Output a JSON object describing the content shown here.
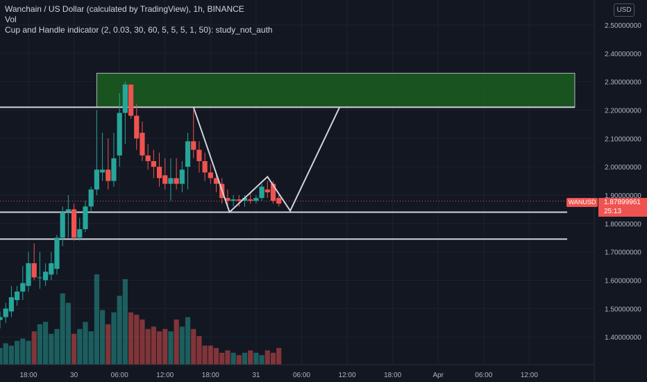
{
  "legend": {
    "title": "Wanchain / US Dollar (calculated by TradingView), 1h, BINANCE",
    "vol": "Vol",
    "indicator": "Cup and Handle indicator (2, 0.03, 30, 60, 5, 5, 5, 1, 50): study_not_auth"
  },
  "currency_button": "USD",
  "last_price": {
    "symbol": "WANUSD",
    "value": "1.87899961",
    "countdown": "25:13"
  },
  "colors": {
    "background": "#131722",
    "up": "#26a69a",
    "down": "#ef5350",
    "zone_fill": "#1b5e20",
    "line": "#d1d4dc",
    "grid": "#1e222d"
  },
  "chart_data": {
    "type": "candlestick",
    "symbol": "WANUSD",
    "interval": "1h",
    "ylim": [
      1.32,
      2.56
    ],
    "y_ticks": [
      "2.50000000",
      "2.40000000",
      "2.30000000",
      "2.20000000",
      "2.10000000",
      "2.00000000",
      "1.90000000",
      "1.80000000",
      "1.70000000",
      "1.60000000",
      "1.50000000",
      "1.40000000"
    ],
    "x_ticks": [
      "18:00",
      "30",
      "06:00",
      "12:00",
      "18:00",
      "31",
      "06:00",
      "12:00",
      "18:00",
      "Apr",
      "06:00",
      "12:00"
    ],
    "x_tick_hours": [
      0,
      6,
      12,
      18,
      24,
      30,
      36,
      42,
      48,
      54,
      60,
      66
    ],
    "candles": [
      {
        "t": -4.5,
        "o": 1.45,
        "h": 1.47,
        "l": 1.42,
        "c": 1.43
      },
      {
        "t": -3.75,
        "o": 1.46,
        "h": 1.49,
        "l": 1.43,
        "c": 1.47
      },
      {
        "t": -3,
        "o": 1.47,
        "h": 1.52,
        "l": 1.45,
        "c": 1.5
      },
      {
        "t": -2.25,
        "o": 1.49,
        "h": 1.58,
        "l": 1.47,
        "c": 1.54
      },
      {
        "t": -1.5,
        "o": 1.53,
        "h": 1.58,
        "l": 1.51,
        "c": 1.56
      },
      {
        "t": -0.75,
        "o": 1.56,
        "h": 1.65,
        "l": 1.53,
        "c": 1.59
      },
      {
        "t": 0,
        "o": 1.58,
        "h": 1.7,
        "l": 1.56,
        "c": 1.66
      },
      {
        "t": 0.75,
        "o": 1.66,
        "h": 1.73,
        "l": 1.6,
        "c": 1.61
      },
      {
        "t": 1.5,
        "o": 1.61,
        "h": 1.7,
        "l": 1.57,
        "c": 1.61
      },
      {
        "t": 2.25,
        "o": 1.6,
        "h": 1.66,
        "l": 1.58,
        "c": 1.63
      },
      {
        "t": 3,
        "o": 1.62,
        "h": 1.7,
        "l": 1.6,
        "c": 1.66
      },
      {
        "t": 3.75,
        "o": 1.64,
        "h": 1.76,
        "l": 1.62,
        "c": 1.75
      },
      {
        "t": 4.5,
        "o": 1.75,
        "h": 1.86,
        "l": 1.72,
        "c": 1.84
      },
      {
        "t": 5.25,
        "o": 1.84,
        "h": 1.9,
        "l": 1.75,
        "c": 1.85
      },
      {
        "t": 6,
        "o": 1.85,
        "h": 1.87,
        "l": 1.74,
        "c": 1.75
      },
      {
        "t": 6.75,
        "o": 1.75,
        "h": 1.82,
        "l": 1.74,
        "c": 1.78
      },
      {
        "t": 7.5,
        "o": 1.78,
        "h": 1.88,
        "l": 1.77,
        "c": 1.86
      },
      {
        "t": 8.25,
        "o": 1.86,
        "h": 1.93,
        "l": 1.84,
        "c": 1.92
      },
      {
        "t": 9,
        "o": 1.92,
        "h": 2.2,
        "l": 1.9,
        "c": 1.99
      },
      {
        "t": 9.75,
        "o": 1.98,
        "h": 2.12,
        "l": 1.95,
        "c": 1.99
      },
      {
        "t": 10.5,
        "o": 1.99,
        "h": 2.1,
        "l": 1.92,
        "c": 1.95
      },
      {
        "t": 11.25,
        "o": 1.95,
        "h": 2.12,
        "l": 1.93,
        "c": 2.03
      },
      {
        "t": 12,
        "o": 2.04,
        "h": 2.26,
        "l": 2.0,
        "c": 2.19
      },
      {
        "t": 12.75,
        "o": 2.19,
        "h": 2.3,
        "l": 2.08,
        "c": 2.29
      },
      {
        "t": 13.5,
        "o": 2.29,
        "h": 2.29,
        "l": 2.17,
        "c": 2.18
      },
      {
        "t": 14.25,
        "o": 2.18,
        "h": 2.22,
        "l": 2.06,
        "c": 2.1
      },
      {
        "t": 15,
        "o": 2.12,
        "h": 2.16,
        "l": 2.02,
        "c": 2.04
      },
      {
        "t": 15.75,
        "o": 2.04,
        "h": 2.08,
        "l": 1.99,
        "c": 2.02
      },
      {
        "t": 16.5,
        "o": 2.02,
        "h": 2.06,
        "l": 1.96,
        "c": 2.0
      },
      {
        "t": 17.25,
        "o": 2.0,
        "h": 2.05,
        "l": 1.93,
        "c": 1.96
      },
      {
        "t": 18,
        "o": 1.97,
        "h": 2.03,
        "l": 1.92,
        "c": 1.94
      },
      {
        "t": 18.75,
        "o": 1.94,
        "h": 2.03,
        "l": 1.88,
        "c": 1.96
      },
      {
        "t": 19.5,
        "o": 1.96,
        "h": 2.03,
        "l": 1.92,
        "c": 1.94
      },
      {
        "t": 20.25,
        "o": 1.94,
        "h": 2.02,
        "l": 1.91,
        "c": 1.99
      },
      {
        "t": 21,
        "o": 2.0,
        "h": 2.12,
        "l": 1.92,
        "c": 2.09
      },
      {
        "t": 21.75,
        "o": 2.09,
        "h": 2.2,
        "l": 2.03,
        "c": 2.06
      },
      {
        "t": 22.5,
        "o": 2.06,
        "h": 2.09,
        "l": 1.98,
        "c": 2.02
      },
      {
        "t": 23.25,
        "o": 2.02,
        "h": 2.05,
        "l": 1.95,
        "c": 1.98
      },
      {
        "t": 24,
        "o": 1.98,
        "h": 2.01,
        "l": 1.94,
        "c": 1.96
      },
      {
        "t": 24.75,
        "o": 1.96,
        "h": 1.98,
        "l": 1.91,
        "c": 1.94
      },
      {
        "t": 25.5,
        "o": 1.94,
        "h": 1.96,
        "l": 1.87,
        "c": 1.89
      },
      {
        "t": 26.25,
        "o": 1.89,
        "h": 1.92,
        "l": 1.86,
        "c": 1.88
      },
      {
        "t": 27,
        "o": 1.88,
        "h": 1.9,
        "l": 1.86,
        "c": 1.885
      },
      {
        "t": 27.75,
        "o": 1.885,
        "h": 1.9,
        "l": 1.86,
        "c": 1.88
      },
      {
        "t": 28.5,
        "o": 1.88,
        "h": 1.9,
        "l": 1.86,
        "c": 1.89
      },
      {
        "t": 29.25,
        "o": 1.885,
        "h": 1.91,
        "l": 1.87,
        "c": 1.88
      },
      {
        "t": 30,
        "o": 1.88,
        "h": 1.9,
        "l": 1.87,
        "c": 1.89
      },
      {
        "t": 30.75,
        "o": 1.89,
        "h": 1.94,
        "l": 1.88,
        "c": 1.93
      },
      {
        "t": 31.5,
        "o": 1.92,
        "h": 1.95,
        "l": 1.89,
        "c": 1.91
      },
      {
        "t": 32.25,
        "o": 1.94,
        "h": 1.95,
        "l": 1.87,
        "c": 1.88
      },
      {
        "t": 33,
        "o": 1.89,
        "h": 1.9,
        "l": 1.86,
        "c": 1.87
      }
    ],
    "volume": [
      6,
      7,
      9,
      8,
      10,
      11,
      10,
      14,
      17,
      18,
      13,
      15,
      30,
      26,
      13,
      15,
      18,
      14,
      38,
      23,
      17,
      22,
      29,
      36,
      22,
      21,
      19,
      15,
      16,
      14,
      15,
      14,
      19,
      16,
      20,
      15,
      12,
      8,
      8,
      7,
      5,
      6,
      5,
      4,
      5,
      6,
      5,
      4,
      6,
      5,
      7
    ],
    "resistance_zone": {
      "y_top": 2.33,
      "y_bottom": 2.21,
      "t_start": 9,
      "t_end": 72
    },
    "levels": [
      {
        "y": 2.21,
        "t_start": -10,
        "t_end": 72
      },
      {
        "y": 1.84,
        "t_start": -10,
        "t_end": 71
      },
      {
        "y": 1.745,
        "t_start": -10,
        "t_end": 71
      }
    ],
    "pattern_path": [
      {
        "t": 21.75,
        "y": 2.21
      },
      {
        "t": 26.5,
        "y": 1.84
      },
      {
        "t": 31.5,
        "y": 1.965
      },
      {
        "t": 34.5,
        "y": 1.845
      },
      {
        "t": 41,
        "y": 2.21
      }
    ],
    "last_price_value": 1.87899961
  }
}
